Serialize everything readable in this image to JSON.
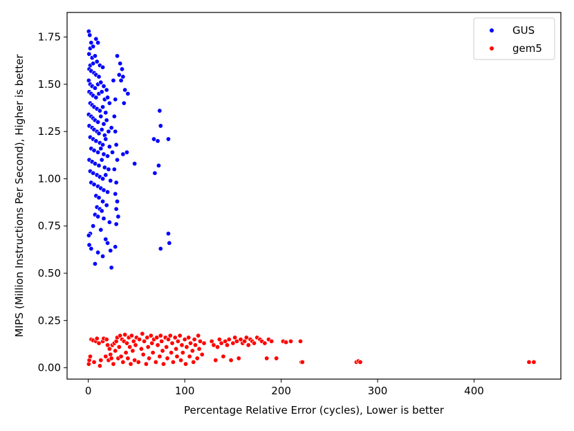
{
  "chart_data": {
    "type": "scatter",
    "title": "",
    "xlabel": "Percentage Relative Error (cycles), Lower is better",
    "ylabel": "MIPS (Million Instructions Per Second), Higher is better",
    "xlim": [
      -22,
      490
    ],
    "ylim": [
      -0.06,
      1.88
    ],
    "xticks": [
      0,
      100,
      200,
      300,
      400
    ],
    "xtick_labels": [
      "0",
      "100",
      "200",
      "300",
      "400"
    ],
    "yticks": [
      0.0,
      0.25,
      0.5,
      0.75,
      1.0,
      1.25,
      1.5,
      1.75
    ],
    "ytick_labels": [
      "0.00",
      "0.25",
      "0.50",
      "0.75",
      "1.00",
      "1.25",
      "1.50",
      "1.75"
    ],
    "grid": false,
    "legend_position": "top-right",
    "series": [
      {
        "name": "GUS",
        "color": "#0000ff",
        "points": [
          [
            0.5,
            1.78
          ],
          [
            1.5,
            1.76
          ],
          [
            3,
            1.72
          ],
          [
            2,
            1.69
          ],
          [
            5,
            1.7
          ],
          [
            8,
            1.74
          ],
          [
            10,
            1.72
          ],
          [
            0.8,
            1.66
          ],
          [
            4,
            1.64
          ],
          [
            7,
            1.65
          ],
          [
            2,
            1.6
          ],
          [
            5,
            1.61
          ],
          [
            9,
            1.62
          ],
          [
            12,
            1.6
          ],
          [
            1,
            1.58
          ],
          [
            3,
            1.57
          ],
          [
            6,
            1.56
          ],
          [
            8,
            1.55
          ],
          [
            11,
            1.54
          ],
          [
            15,
            1.59
          ],
          [
            0.5,
            1.52
          ],
          [
            2,
            1.5
          ],
          [
            4,
            1.49
          ],
          [
            7,
            1.48
          ],
          [
            10,
            1.5
          ],
          [
            13,
            1.51
          ],
          [
            16,
            1.49
          ],
          [
            19,
            1.47
          ],
          [
            1,
            1.46
          ],
          [
            3,
            1.45
          ],
          [
            5,
            1.44
          ],
          [
            8,
            1.43
          ],
          [
            11,
            1.45
          ],
          [
            14,
            1.46
          ],
          [
            17,
            1.42
          ],
          [
            20,
            1.43
          ],
          [
            2,
            1.4
          ],
          [
            4,
            1.39
          ],
          [
            6,
            1.38
          ],
          [
            9,
            1.37
          ],
          [
            12,
            1.36
          ],
          [
            15,
            1.38
          ],
          [
            18,
            1.35
          ],
          [
            22,
            1.4
          ],
          [
            0.5,
            1.34
          ],
          [
            3,
            1.33
          ],
          [
            5,
            1.32
          ],
          [
            7,
            1.31
          ],
          [
            10,
            1.3
          ],
          [
            13,
            1.33
          ],
          [
            16,
            1.29
          ],
          [
            19,
            1.31
          ],
          [
            1,
            1.28
          ],
          [
            4,
            1.27
          ],
          [
            6,
            1.26
          ],
          [
            9,
            1.25
          ],
          [
            11,
            1.24
          ],
          [
            14,
            1.26
          ],
          [
            17,
            1.23
          ],
          [
            21,
            1.25
          ],
          [
            24,
            1.27
          ],
          [
            2,
            1.22
          ],
          [
            5,
            1.21
          ],
          [
            8,
            1.2
          ],
          [
            12,
            1.19
          ],
          [
            15,
            1.18
          ],
          [
            18,
            1.21
          ],
          [
            22,
            1.17
          ],
          [
            3,
            1.16
          ],
          [
            6,
            1.15
          ],
          [
            10,
            1.14
          ],
          [
            13,
            1.16
          ],
          [
            16,
            1.13
          ],
          [
            20,
            1.12
          ],
          [
            25,
            1.14
          ],
          [
            1,
            1.1
          ],
          [
            4,
            1.09
          ],
          [
            7,
            1.08
          ],
          [
            11,
            1.07
          ],
          [
            14,
            1.1
          ],
          [
            17,
            1.06
          ],
          [
            21,
            1.05
          ],
          [
            2,
            1.04
          ],
          [
            5,
            1.03
          ],
          [
            9,
            1.02
          ],
          [
            12,
            1.01
          ],
          [
            15,
            1.0
          ],
          [
            18,
            1.02
          ],
          [
            23,
            0.99
          ],
          [
            3,
            0.98
          ],
          [
            6,
            0.97
          ],
          [
            10,
            0.96
          ],
          [
            13,
            0.95
          ],
          [
            16,
            0.94
          ],
          [
            20,
            0.93
          ],
          [
            8,
            0.91
          ],
          [
            11,
            0.9
          ],
          [
            15,
            0.88
          ],
          [
            19,
            0.86
          ],
          [
            9,
            0.85
          ],
          [
            12,
            0.84
          ],
          [
            14,
            0.83
          ],
          [
            7,
            0.81
          ],
          [
            10,
            0.8
          ],
          [
            16,
            0.79
          ],
          [
            22,
            0.77
          ],
          [
            5,
            0.75
          ],
          [
            13,
            0.73
          ],
          [
            2,
            0.71
          ],
          [
            0.5,
            0.7
          ],
          [
            18,
            0.68
          ],
          [
            1,
            0.65
          ],
          [
            20,
            0.66
          ],
          [
            3,
            0.63
          ],
          [
            10,
            0.61
          ],
          [
            15,
            0.59
          ],
          [
            23,
            0.62
          ],
          [
            7,
            0.55
          ],
          [
            24,
            0.53
          ],
          [
            28,
            0.64
          ],
          [
            26,
            1.52
          ],
          [
            28,
            1.42
          ],
          [
            27,
            1.33
          ],
          [
            28,
            1.25
          ],
          [
            29,
            1.18
          ],
          [
            30,
            1.1
          ],
          [
            27,
            1.05
          ],
          [
            29,
            0.98
          ],
          [
            28,
            0.92
          ],
          [
            30,
            0.88
          ],
          [
            29,
            0.84
          ],
          [
            31,
            0.8
          ],
          [
            29,
            0.76
          ],
          [
            30,
            1.65
          ],
          [
            33,
            1.61
          ],
          [
            35,
            1.58
          ],
          [
            32,
            1.55
          ],
          [
            36,
            1.54
          ],
          [
            34,
            1.52
          ],
          [
            38,
            1.47
          ],
          [
            41,
            1.45
          ],
          [
            37,
            1.4
          ],
          [
            40,
            1.14
          ],
          [
            36,
            1.13
          ],
          [
            48,
            1.08
          ],
          [
            68,
            1.21
          ],
          [
            72,
            1.2
          ],
          [
            69,
            1.03
          ],
          [
            73,
            1.07
          ],
          [
            74,
            1.36
          ],
          [
            75,
            1.28
          ],
          [
            83,
            1.21
          ],
          [
            83,
            0.71
          ],
          [
            84,
            0.66
          ],
          [
            75,
            0.63
          ]
        ]
      },
      {
        "name": "gem5",
        "color": "#ff0000",
        "points": [
          [
            0.5,
            0.02
          ],
          [
            1,
            0.04
          ],
          [
            2,
            0.06
          ],
          [
            3,
            0.15
          ],
          [
            5,
            0.145
          ],
          [
            6,
            0.03
          ],
          [
            8,
            0.14
          ],
          [
            9,
            0.155
          ],
          [
            11,
            0.13
          ],
          [
            12,
            0.01
          ],
          [
            13,
            0.04
          ],
          [
            15,
            0.14
          ],
          [
            16,
            0.155
          ],
          [
            18,
            0.06
          ],
          [
            19,
            0.15
          ],
          [
            20,
            0.12
          ],
          [
            21,
            0.04
          ],
          [
            22,
            0.1
          ],
          [
            23,
            0.07
          ],
          [
            24,
            0.05
          ],
          [
            25,
            0.12
          ],
          [
            26,
            0.02
          ],
          [
            27,
            0.13
          ],
          [
            28,
            0.09
          ],
          [
            29,
            0.14
          ],
          [
            30,
            0.16
          ],
          [
            31,
            0.05
          ],
          [
            32,
            0.11
          ],
          [
            33,
            0.17
          ],
          [
            34,
            0.06
          ],
          [
            35,
            0.15
          ],
          [
            36,
            0.03
          ],
          [
            37,
            0.14
          ],
          [
            38,
            0.175
          ],
          [
            39,
            0.08
          ],
          [
            40,
            0.13
          ],
          [
            41,
            0.05
          ],
          [
            42,
            0.16
          ],
          [
            43,
            0.11
          ],
          [
            44,
            0.02
          ],
          [
            45,
            0.17
          ],
          [
            46,
            0.09
          ],
          [
            47,
            0.14
          ],
          [
            48,
            0.04
          ],
          [
            49,
            0.12
          ],
          [
            50,
            0.16
          ],
          [
            52,
            0.03
          ],
          [
            53,
            0.15
          ],
          [
            55,
            0.1
          ],
          [
            56,
            0.18
          ],
          [
            57,
            0.07
          ],
          [
            58,
            0.14
          ],
          [
            60,
            0.02
          ],
          [
            61,
            0.16
          ],
          [
            62,
            0.11
          ],
          [
            63,
            0.05
          ],
          [
            65,
            0.17
          ],
          [
            66,
            0.13
          ],
          [
            67,
            0.08
          ],
          [
            68,
            0.15
          ],
          [
            70,
            0.03
          ],
          [
            71,
            0.16
          ],
          [
            72,
            0.12
          ],
          [
            74,
            0.06
          ],
          [
            75,
            0.17
          ],
          [
            76,
            0.14
          ],
          [
            77,
            0.09
          ],
          [
            78,
            0.02
          ],
          [
            80,
            0.16
          ],
          [
            81,
            0.11
          ],
          [
            82,
            0.05
          ],
          [
            83,
            0.15
          ],
          [
            85,
            0.17
          ],
          [
            86,
            0.08
          ],
          [
            87,
            0.13
          ],
          [
            88,
            0.03
          ],
          [
            90,
            0.16
          ],
          [
            91,
            0.1
          ],
          [
            92,
            0.06
          ],
          [
            93,
            0.14
          ],
          [
            95,
            0.17
          ],
          [
            96,
            0.04
          ],
          [
            97,
            0.12
          ],
          [
            98,
            0.08
          ],
          [
            100,
            0.15
          ],
          [
            101,
            0.02
          ],
          [
            102,
            0.11
          ],
          [
            104,
            0.16
          ],
          [
            105,
            0.06
          ],
          [
            106,
            0.13
          ],
          [
            108,
            0.09
          ],
          [
            109,
            0.03
          ],
          [
            110,
            0.15
          ],
          [
            111,
            0.12
          ],
          [
            113,
            0.05
          ],
          [
            114,
            0.17
          ],
          [
            115,
            0.1
          ],
          [
            116,
            0.14
          ],
          [
            118,
            0.07
          ],
          [
            120,
            0.13
          ],
          [
            128,
            0.14
          ],
          [
            130,
            0.12
          ],
          [
            132,
            0.04
          ],
          [
            134,
            0.11
          ],
          [
            136,
            0.15
          ],
          [
            138,
            0.13
          ],
          [
            140,
            0.06
          ],
          [
            142,
            0.14
          ],
          [
            144,
            0.12
          ],
          [
            146,
            0.15
          ],
          [
            148,
            0.04
          ],
          [
            150,
            0.13
          ],
          [
            152,
            0.16
          ],
          [
            154,
            0.14
          ],
          [
            156,
            0.05
          ],
          [
            158,
            0.15
          ],
          [
            160,
            0.13
          ],
          [
            162,
            0.14
          ],
          [
            164,
            0.16
          ],
          [
            166,
            0.12
          ],
          [
            168,
            0.15
          ],
          [
            170,
            0.14
          ],
          [
            172,
            0.13
          ],
          [
            175,
            0.16
          ],
          [
            178,
            0.15
          ],
          [
            180,
            0.14
          ],
          [
            183,
            0.13
          ],
          [
            185,
            0.05
          ],
          [
            187,
            0.15
          ],
          [
            190,
            0.14
          ],
          [
            195,
            0.05
          ],
          [
            202,
            0.14
          ],
          [
            205,
            0.135
          ],
          [
            210,
            0.14
          ],
          [
            220,
            0.14
          ],
          [
            221,
            0.03
          ],
          [
            222,
            0.03
          ],
          [
            278,
            0.03
          ],
          [
            280,
            0.035
          ],
          [
            282,
            0.03
          ],
          [
            457,
            0.03
          ],
          [
            462,
            0.03
          ]
        ]
      }
    ]
  }
}
